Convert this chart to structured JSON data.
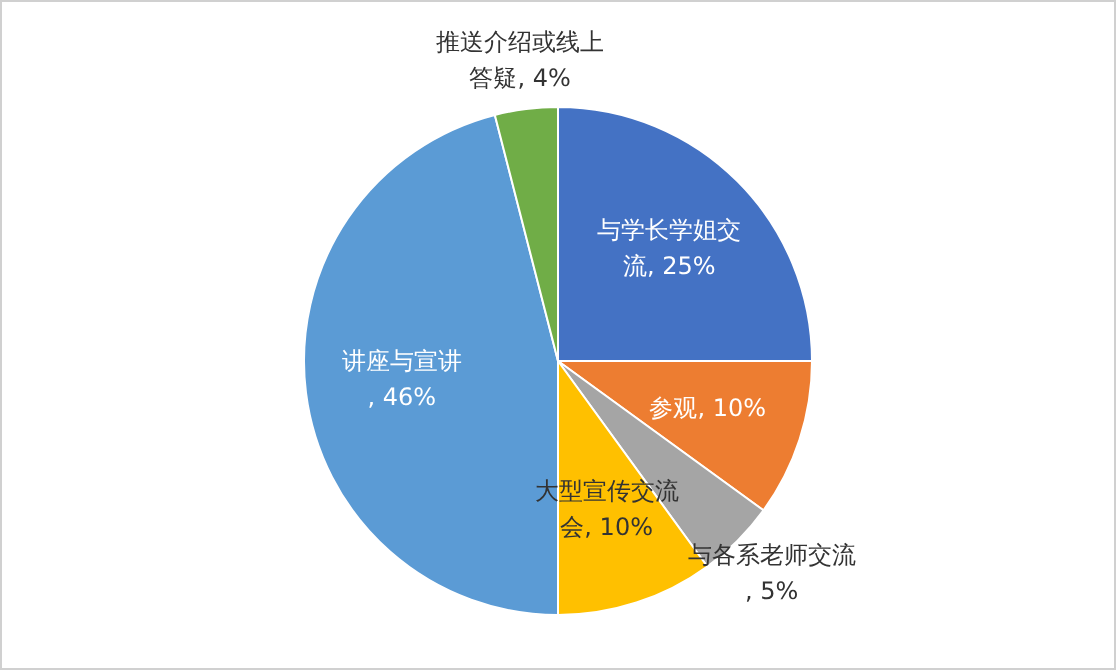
{
  "chart_data": {
    "type": "pie",
    "categories": [
      "与学长学姐交流",
      "参观",
      "与各系老师交流",
      "大型宣传交流会",
      "讲座与宣讲",
      "推送介绍或线上答疑"
    ],
    "values": [
      25,
      10,
      5,
      10,
      46,
      4
    ],
    "colors": [
      "#4472c4",
      "#ed7d31",
      "#a5a5a5",
      "#ffc000",
      "#5b9bd5",
      "#70ad47"
    ],
    "value_labels": [
      ", 25%",
      ", 10%",
      ", 5%",
      ", 10%",
      ", 46%",
      ", 4%"
    ],
    "legend": false
  }
}
